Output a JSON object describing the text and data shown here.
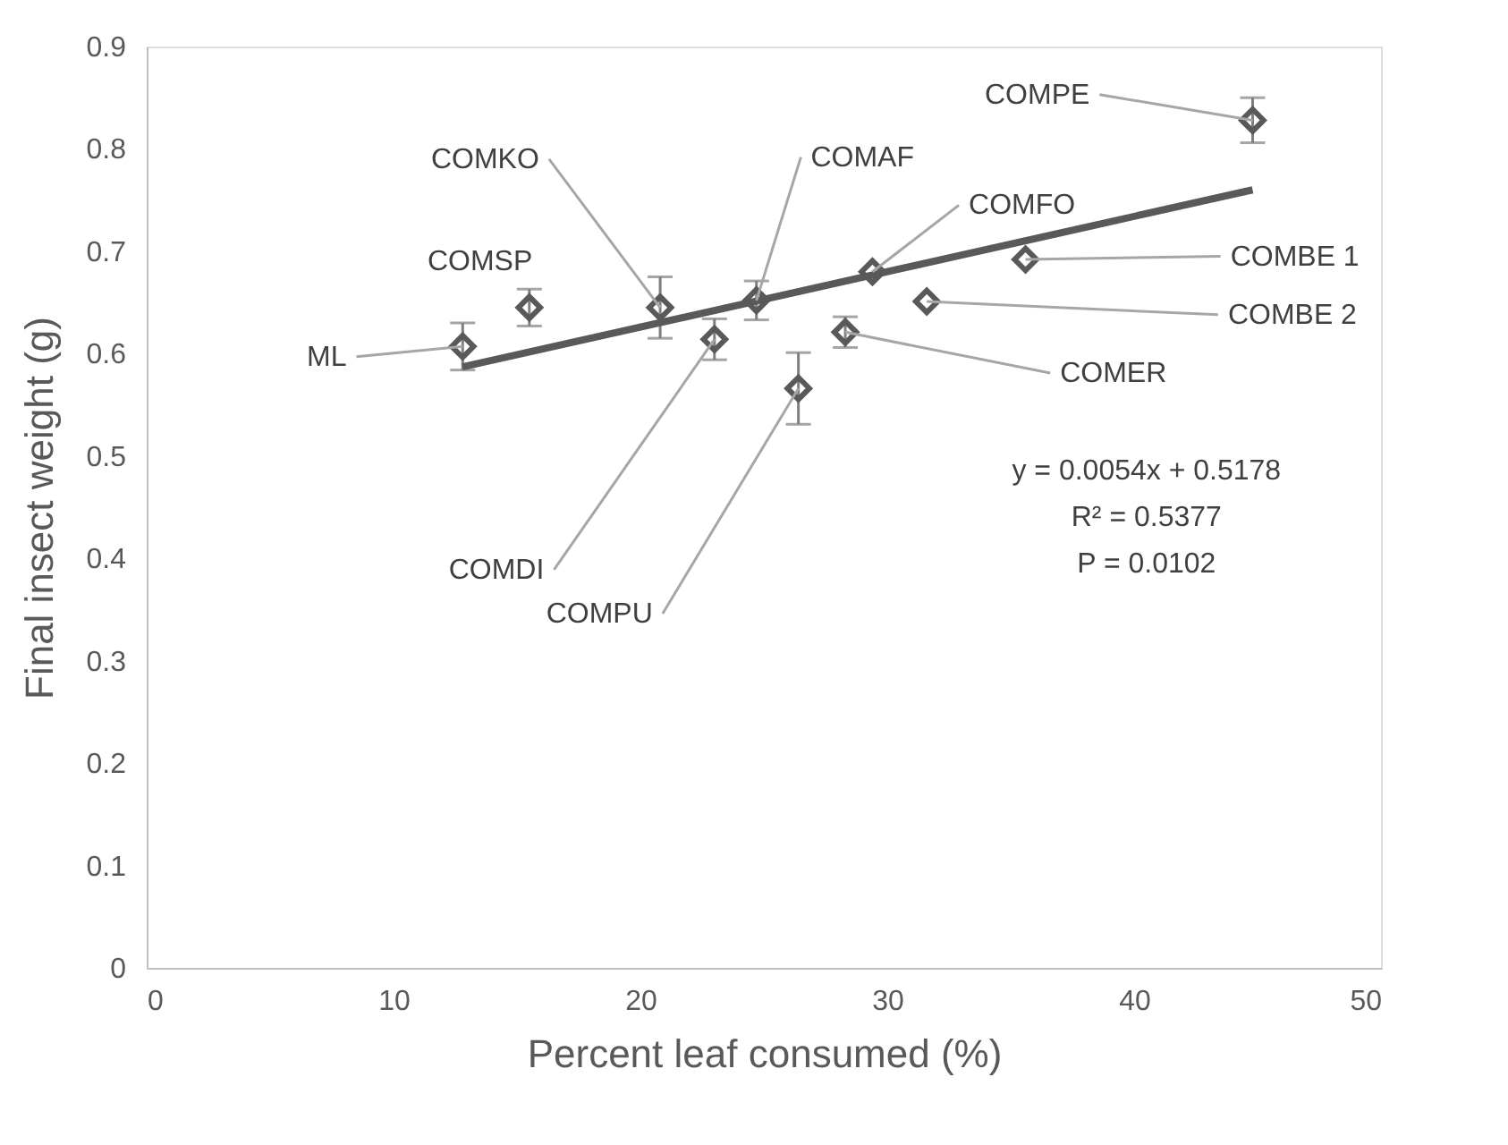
{
  "chart_data": {
    "type": "scatter",
    "xlabel": "Percent leaf consumed (%)",
    "ylabel": "Final insect weight (g)",
    "xlim": [
      0,
      50
    ],
    "xticks": [
      0,
      10,
      20,
      30,
      40,
      50
    ],
    "ylim": [
      0,
      0.9
    ],
    "yticks": [
      0,
      0.1,
      0.2,
      0.3,
      0.4,
      0.5,
      0.6,
      0.7,
      0.8,
      0.9
    ],
    "grid": false,
    "marker": "diamond",
    "series": [
      {
        "type": "scatter",
        "color": "#595959",
        "x": [
          12.8,
          15.5,
          20.8,
          23.0,
          24.7,
          26.4,
          28.3,
          29.4,
          31.6,
          35.6,
          44.8
        ],
        "values": [
          0.607,
          0.645,
          0.645,
          0.614,
          0.652,
          0.566,
          0.621,
          0.68,
          0.651,
          0.692,
          0.828
        ],
        "errors": [
          0.023,
          0.018,
          0.03,
          0.02,
          0.019,
          0.035,
          0.015,
          null,
          null,
          null,
          0.022
        ]
      },
      {
        "type": "line",
        "color": "#595959",
        "marker": "none",
        "line_style": "solid",
        "x": [
          12.8,
          44.8
        ],
        "values": [
          0.587,
          0.76
        ]
      }
    ],
    "annotations": [
      {
        "text": "ML",
        "x": 12.8,
        "y": 0.607
      },
      {
        "text": "COMSP",
        "x": 15.5,
        "y": 0.645
      },
      {
        "text": "COMKO",
        "x": 20.8,
        "y": 0.645
      },
      {
        "text": "COMDI",
        "x": 23.0,
        "y": 0.614
      },
      {
        "text": "COMAF",
        "x": 24.7,
        "y": 0.652
      },
      {
        "text": "COMPU",
        "x": 26.4,
        "y": 0.566
      },
      {
        "text": "COMER",
        "x": 28.3,
        "y": 0.621
      },
      {
        "text": "COMFO",
        "x": 29.4,
        "y": 0.68
      },
      {
        "text": "COMBE 2",
        "x": 31.6,
        "y": 0.651
      },
      {
        "text": "COMBE 1",
        "x": 35.6,
        "y": 0.692
      },
      {
        "text": "COMPE",
        "x": 44.8,
        "y": 0.828
      },
      "y = 0.0054x + 0.5178",
      "R² = 0.5377",
      "P = 0.0102"
    ]
  }
}
